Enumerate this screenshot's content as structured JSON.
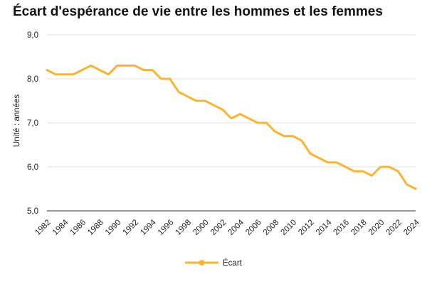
{
  "chart_data": {
    "type": "line",
    "title": "Écart d'espérance de vie entre les hommes et les femmes",
    "xlabel": "",
    "ylabel": "Unité : années",
    "ylim": [
      5.0,
      9.0
    ],
    "yticks": [
      "5,0",
      "6,0",
      "7,0",
      "8,0",
      "9,0"
    ],
    "grid": true,
    "legend_position": "bottom",
    "x": [
      1982,
      1983,
      1984,
      1985,
      1986,
      1987,
      1988,
      1989,
      1990,
      1991,
      1992,
      1993,
      1994,
      1995,
      1996,
      1997,
      1998,
      1999,
      2000,
      2001,
      2002,
      2003,
      2004,
      2005,
      2006,
      2007,
      2008,
      2009,
      2010,
      2011,
      2012,
      2013,
      2014,
      2015,
      2016,
      2017,
      2018,
      2019,
      2020,
      2021,
      2022,
      2023,
      2024
    ],
    "xtick_labels": [
      "1982",
      "1984",
      "1986",
      "1988",
      "1990",
      "1992",
      "1994",
      "1996",
      "1998",
      "2000",
      "2002",
      "2004",
      "2006",
      "2008",
      "2010",
      "2012",
      "2014",
      "2016",
      "2018",
      "2020",
      "2022",
      "2024"
    ],
    "series": [
      {
        "name": "Écart",
        "color": "#F9B530",
        "values": [
          8.2,
          8.1,
          8.1,
          8.1,
          8.2,
          8.3,
          8.2,
          8.1,
          8.3,
          8.3,
          8.3,
          8.2,
          8.2,
          8.0,
          8.0,
          7.7,
          7.6,
          7.5,
          7.5,
          7.4,
          7.3,
          7.1,
          7.2,
          7.1,
          7.0,
          7.0,
          6.8,
          6.7,
          6.7,
          6.6,
          6.3,
          6.2,
          6.1,
          6.1,
          6.0,
          5.9,
          5.9,
          5.8,
          6.0,
          6.0,
          5.9,
          5.6,
          5.5
        ]
      }
    ]
  }
}
